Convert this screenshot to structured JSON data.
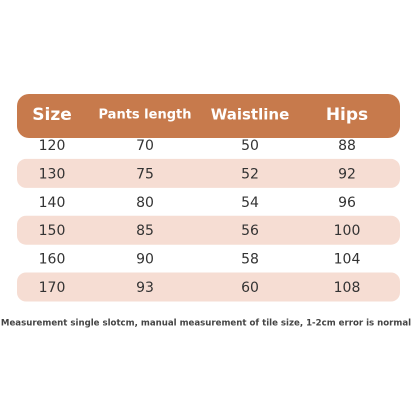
{
  "table": {
    "header": [
      "Size",
      "Pants length",
      "Waistline",
      "Hips"
    ],
    "rows": [
      [
        120,
        70,
        50,
        88
      ],
      [
        130,
        75,
        52,
        92
      ],
      [
        140,
        80,
        54,
        96
      ],
      [
        150,
        85,
        56,
        100
      ],
      [
        160,
        90,
        58,
        104
      ],
      [
        170,
        93,
        60,
        108
      ]
    ]
  },
  "footnote": "Measurement single slotcm, manual measurement of tile size, 1-2cm error is normal"
}
